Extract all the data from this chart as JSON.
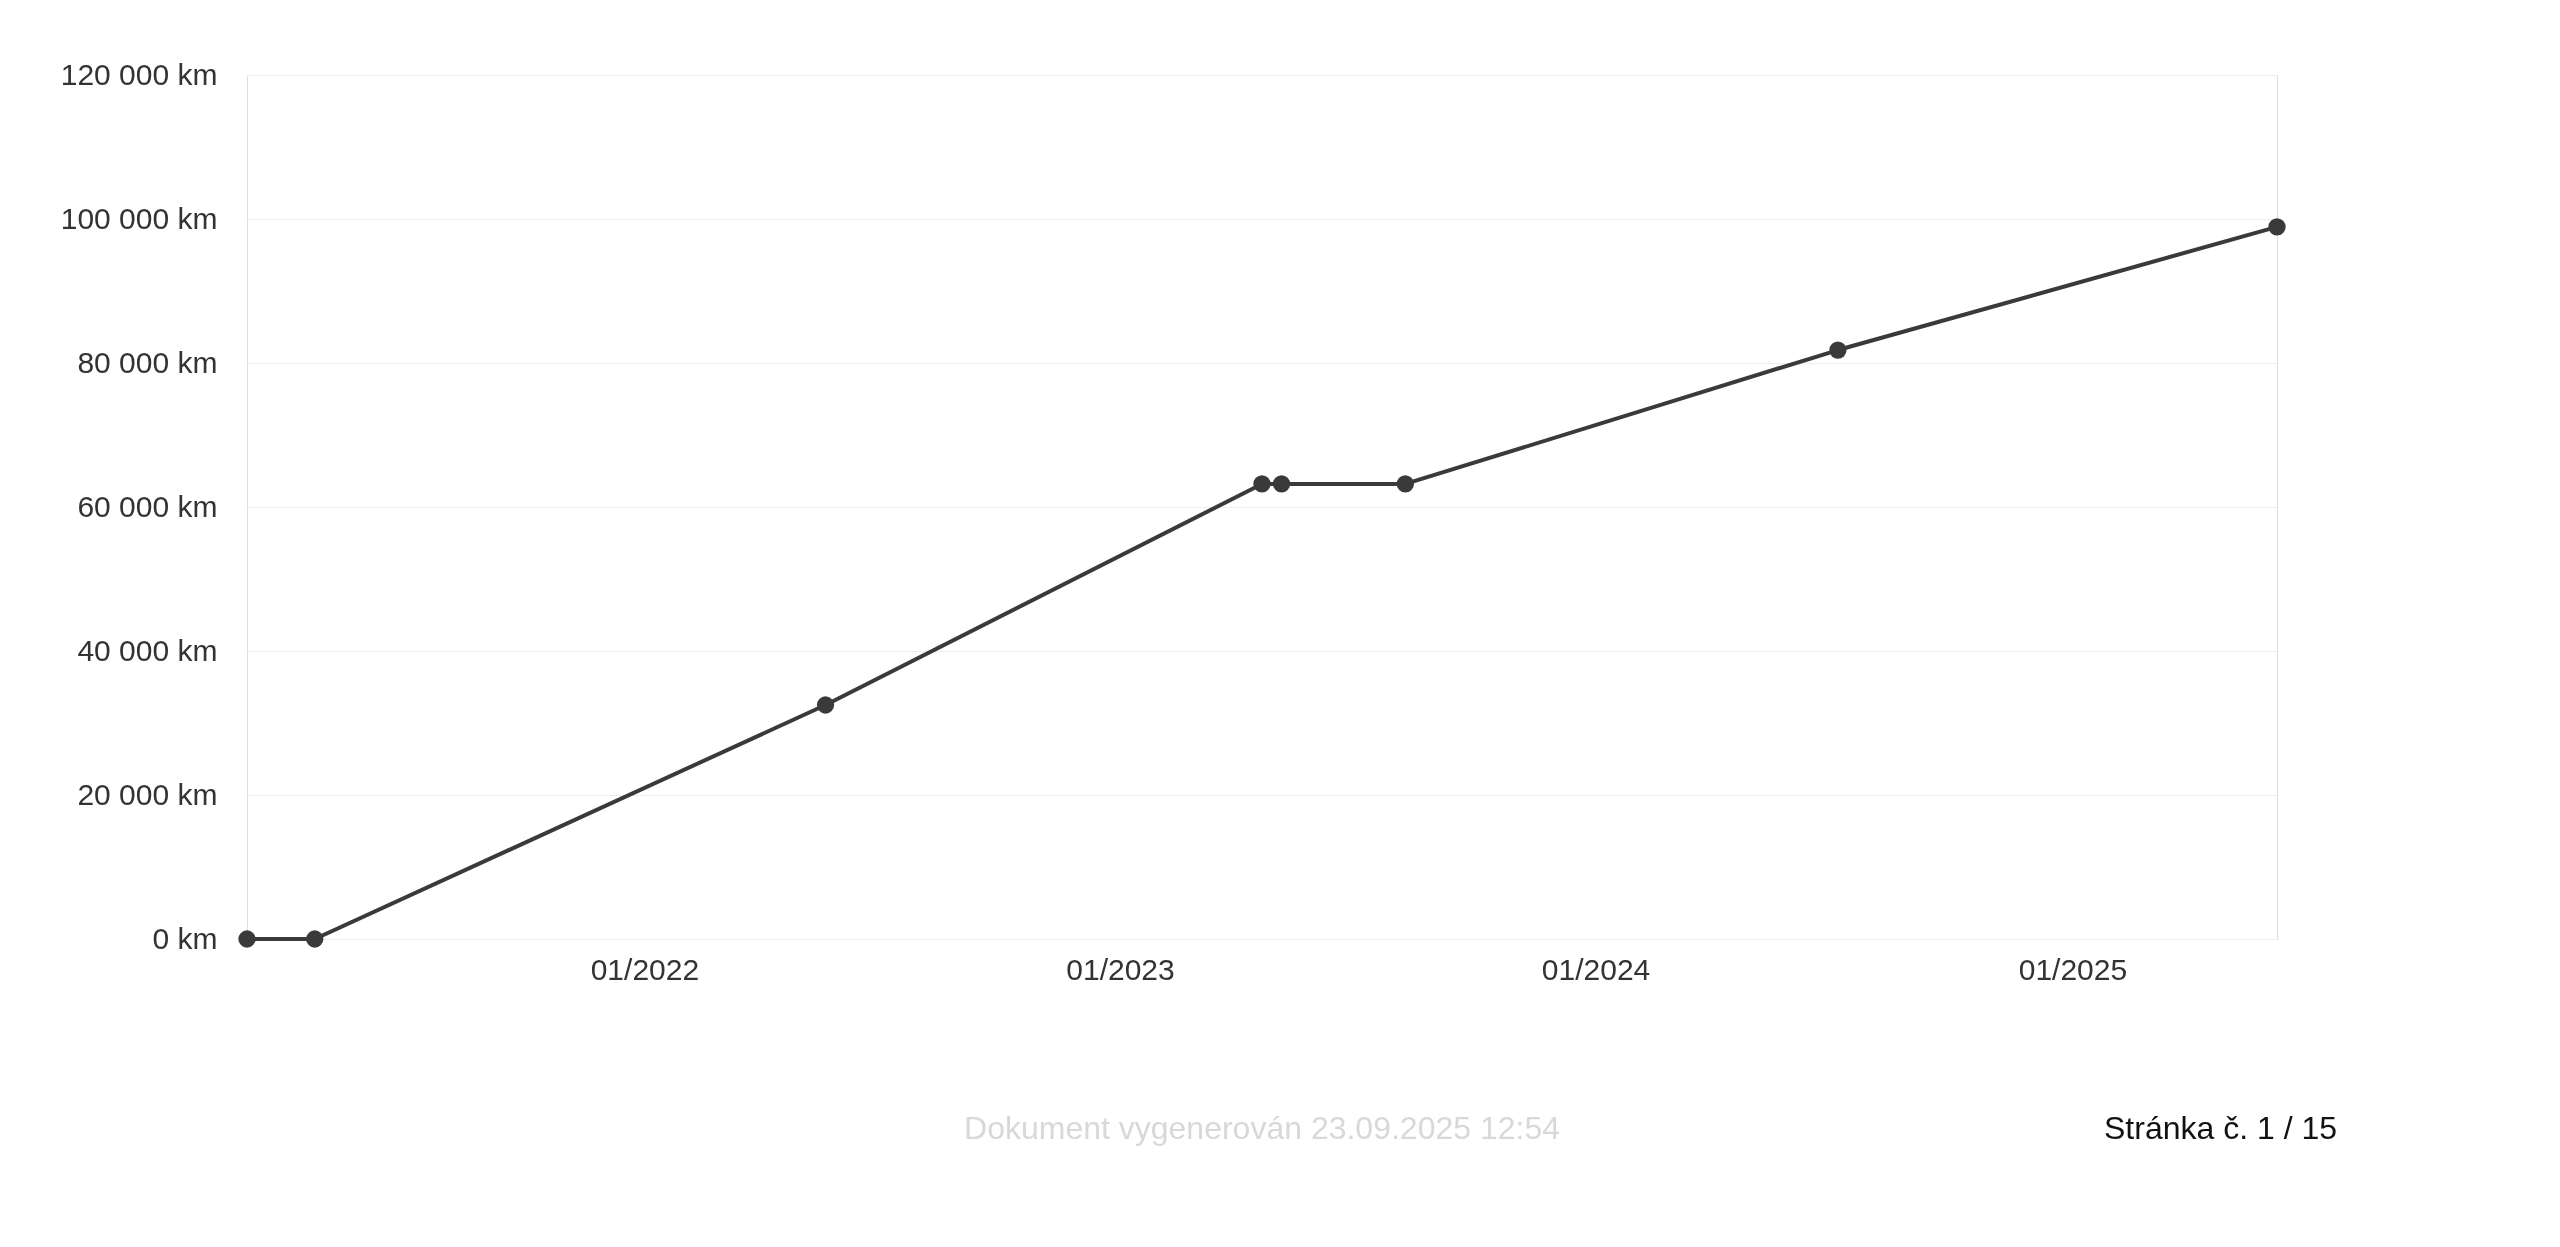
{
  "chart_data": {
    "type": "line",
    "x": [
      "2021-03-02",
      "2021-04-23",
      "2022-05-20",
      "2023-04-20",
      "2023-05-05",
      "2023-08-08",
      "2024-07-05",
      "2025-06-07"
    ],
    "series": [
      {
        "color": "#3a3a3a",
        "values": [
          0,
          0,
          32500,
          63200,
          63200,
          63200,
          81800,
          98900
        ]
      }
    ],
    "xlim": [
      "2021-03-02",
      "2025-06-07"
    ],
    "xticks": [
      {
        "value": "2022-01-01",
        "label": "01/2022"
      },
      {
        "value": "2023-01-01",
        "label": "01/2023"
      },
      {
        "value": "2024-01-01",
        "label": "01/2024"
      },
      {
        "value": "2025-01-01",
        "label": "01/2025"
      }
    ],
    "ylim": [
      0,
      120000
    ],
    "yticks": [
      {
        "value": 0,
        "label": "0 km"
      },
      {
        "value": 20000,
        "label": "20 000 km"
      },
      {
        "value": 40000,
        "label": "40 000 km"
      },
      {
        "value": 60000,
        "label": "60 000 km"
      },
      {
        "value": 80000,
        "label": "80 000 km"
      },
      {
        "value": 100000,
        "label": "100 000 km"
      },
      {
        "value": 120000,
        "label": "120 000 km"
      }
    ],
    "grid": "y",
    "marker": "circle",
    "line_style": "solid",
    "annotations": [
      "Dokument vygenerován 23.09.2025 12:54",
      "Stránka č. 1 / 15"
    ]
  }
}
